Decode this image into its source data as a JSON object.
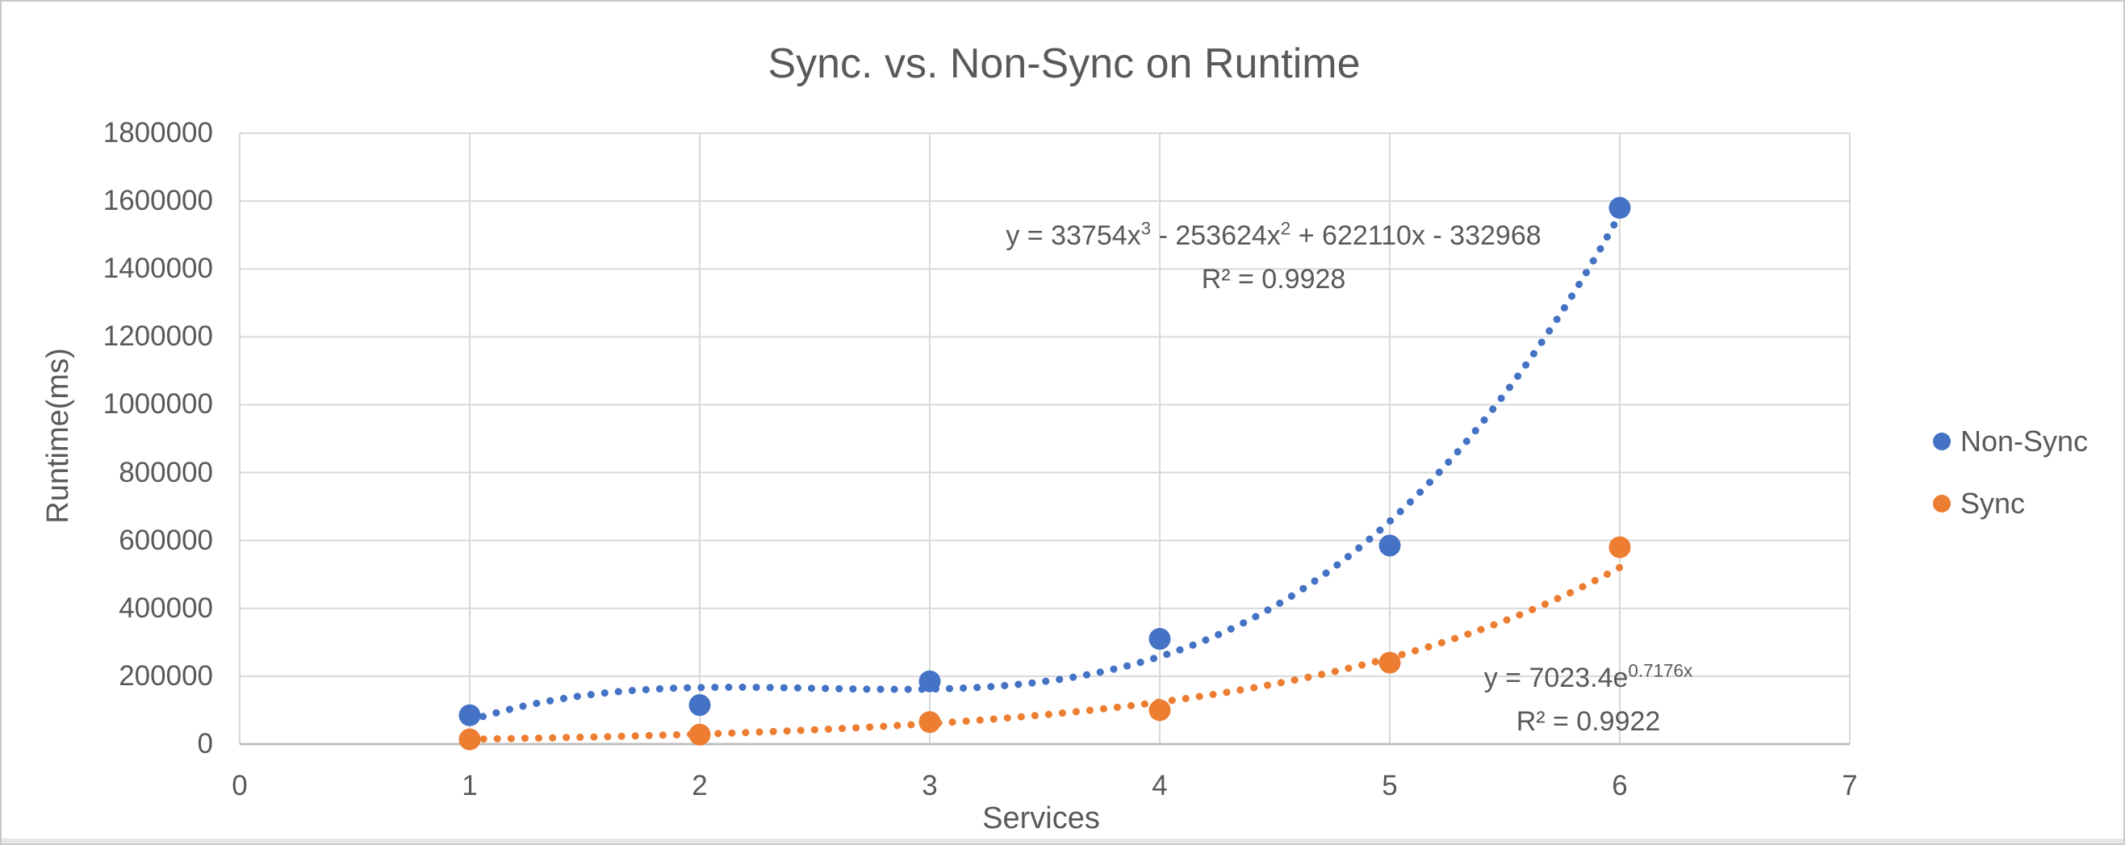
{
  "title": "Sync. vs. Non-Sync on Runtime",
  "chart_data": {
    "type": "scatter",
    "x": [
      1,
      2,
      3,
      4,
      5,
      6
    ],
    "series": [
      {
        "name": "Non-Sync",
        "color": "#4472C4",
        "values": [
          85000,
          115000,
          185000,
          310000,
          585000,
          1580000
        ],
        "trendline": {
          "kind": "polynomial",
          "coefficients": [
            33754,
            -253624,
            622110,
            -332968
          ],
          "equation": "y = 33754x³ - 253624x² + 622110x - 332968",
          "r2": "R² = 0.9928"
        }
      },
      {
        "name": "Sync",
        "color": "#ED7D31",
        "values": [
          14000,
          28000,
          65000,
          100000,
          240000,
          580000
        ],
        "trendline": {
          "kind": "exponential",
          "a": 7023.4,
          "b": 0.7176,
          "equation": "y = 7023.4e^0.7176x",
          "r2": "R² = 0.9922"
        }
      }
    ],
    "xlabel": "Services",
    "ylabel": "Runtime(ms)",
    "xlim": [
      0,
      7
    ],
    "ylim": [
      0,
      1800000
    ],
    "x_ticks": [
      0,
      1,
      2,
      3,
      4,
      5,
      6,
      7
    ],
    "x_tick_labels": [
      "0",
      "1",
      "2",
      "3",
      "4",
      "5",
      "6",
      "7"
    ],
    "y_ticks": [
      0,
      200000,
      400000,
      600000,
      800000,
      1000000,
      1200000,
      1400000,
      1600000,
      1800000
    ],
    "y_tick_labels": [
      "0",
      "200000",
      "400000",
      "600000",
      "800000",
      "1000000",
      "1200000",
      "1400000",
      "1600000",
      "1800000"
    ],
    "grid": true,
    "legend_position": "right",
    "marker": "circle",
    "trendline_style": "dotted"
  },
  "annotations": {
    "nonsync": {
      "p1": "y = 33754x",
      "s1": "3",
      "p2": " - 253624x",
      "s2": "2",
      "p3": " + 622110x - 332968",
      "r2": "R² = 0.9928"
    },
    "sync": {
      "p1": "y = 7023.4e",
      "s1": "0.7176x",
      "r2": "R² = 0.9922"
    }
  },
  "legend": {
    "items": [
      {
        "label": "Non-Sync",
        "color": "#4472C4"
      },
      {
        "label": "Sync",
        "color": "#ED7D31"
      }
    ]
  },
  "colors": {
    "nonsync": "#4472C4",
    "sync": "#ED7D31",
    "gridline": "#D9D9D9",
    "axis_line": "#BFBFBF",
    "text": "#595959",
    "border": "#C9C9C9"
  }
}
